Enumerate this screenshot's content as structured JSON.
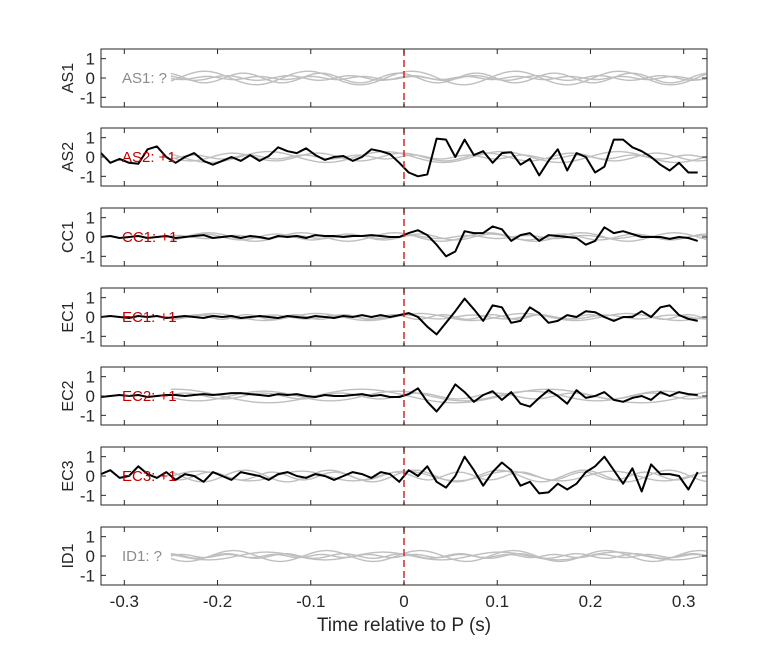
{
  "chart_data": {
    "type": "line",
    "xlabel": "Time relative to P (s)",
    "xlim": [
      -0.325,
      0.325
    ],
    "xticks": [
      -0.3,
      -0.2,
      -0.1,
      0,
      0.1,
      0.2,
      0.3
    ],
    "xtick_labels": [
      "-0.3",
      "-0.2",
      "-0.1",
      "0",
      "0.1",
      "0.2",
      "0.3"
    ],
    "ylim": [
      -1.5,
      1.5
    ],
    "yticks": [
      1,
      0,
      -1
    ],
    "ytick_labels": [
      "1",
      "0",
      "-1"
    ],
    "marker_line": {
      "x": 0,
      "color": "#d62728",
      "style": "dashed"
    },
    "colors": {
      "highlight_trace": "#000000",
      "background_traces": "#bfbfbf",
      "polarity_label": "#c00000",
      "unknown_label": "#8c8c8c",
      "axis": "#262626"
    },
    "panels": [
      {
        "station": "AS1",
        "annotation": "AS1: ?",
        "annotation_color": "#8c8c8c",
        "highlight": null,
        "background": [
          {
            "x0": -0.25,
            "x1": 0.325,
            "amp": 0.08,
            "freq": 18,
            "phase": 0.3
          },
          {
            "x0": -0.25,
            "x1": 0.325,
            "amp": 0.35,
            "freq": 9,
            "phase": 1.1
          },
          {
            "x0": -0.25,
            "x1": 0.325,
            "amp": 0.25,
            "freq": 12,
            "phase": 2.0
          },
          {
            "x0": -0.25,
            "x1": 0.325,
            "amp": 0.12,
            "freq": 15,
            "phase": 0.7
          }
        ]
      },
      {
        "station": "AS2",
        "annotation": "AS2: +1",
        "annotation_color": "#c00000",
        "highlight": {
          "x": [
            -0.325,
            -0.315,
            -0.305,
            -0.295,
            -0.285,
            -0.275,
            -0.265,
            -0.255,
            -0.245,
            -0.235,
            -0.225,
            -0.215,
            -0.205,
            -0.195,
            -0.185,
            -0.175,
            -0.165,
            -0.155,
            -0.145,
            -0.135,
            -0.125,
            -0.115,
            -0.105,
            -0.095,
            -0.085,
            -0.075,
            -0.065,
            -0.055,
            -0.045,
            -0.035,
            -0.025,
            -0.015,
            -0.005,
            0.005,
            0.015,
            0.025,
            0.035,
            0.045,
            0.055,
            0.065,
            0.075,
            0.085,
            0.095,
            0.105,
            0.115,
            0.125,
            0.135,
            0.145,
            0.155,
            0.165,
            0.175,
            0.185,
            0.195,
            0.205,
            0.215,
            0.225,
            0.235,
            0.245,
            0.255,
            0.265,
            0.275,
            0.285,
            0.295,
            0.305,
            0.315
          ],
          "y": [
            0.2,
            -0.3,
            -0.1,
            -0.3,
            -0.35,
            0.4,
            0.55,
            0.0,
            -0.3,
            0.0,
            0.2,
            -0.2,
            -0.4,
            -0.2,
            0.0,
            -0.2,
            0.1,
            -0.2,
            0.05,
            0.5,
            0.3,
            0.2,
            0.45,
            0.1,
            -0.15,
            0.0,
            0.05,
            -0.2,
            0.0,
            0.4,
            0.3,
            0.15,
            -0.3,
            -0.8,
            -1.0,
            -0.9,
            0.95,
            0.9,
            0.0,
            0.9,
            0.1,
            0.3,
            -0.3,
            0.2,
            0.25,
            -0.4,
            -0.1,
            -0.95,
            -0.2,
            0.4,
            -0.7,
            0.2,
            0.0,
            -0.8,
            -0.5,
            0.9,
            0.9,
            0.5,
            0.3,
            0.0,
            -0.4,
            -0.7,
            -0.3,
            -0.8,
            -0.8
          ]
        },
        "background": [
          {
            "x0": -0.25,
            "x1": 0.325,
            "amp": 0.1,
            "freq": 17,
            "phase": 0.5
          },
          {
            "x0": -0.25,
            "x1": 0.325,
            "amp": 0.2,
            "freq": 11,
            "phase": 1.7
          },
          {
            "x0": -0.25,
            "x1": 0.325,
            "amp": 0.28,
            "freq": 8,
            "phase": 2.6
          }
        ]
      },
      {
        "station": "CC1",
        "annotation": "CC1: +1",
        "annotation_color": "#c00000",
        "highlight": {
          "x": [
            -0.325,
            -0.315,
            -0.305,
            -0.295,
            -0.285,
            -0.275,
            -0.265,
            -0.255,
            -0.245,
            -0.235,
            -0.225,
            -0.215,
            -0.205,
            -0.195,
            -0.185,
            -0.175,
            -0.165,
            -0.155,
            -0.145,
            -0.135,
            -0.125,
            -0.115,
            -0.105,
            -0.095,
            -0.085,
            -0.075,
            -0.065,
            -0.055,
            -0.045,
            -0.035,
            -0.025,
            -0.015,
            -0.005,
            0.005,
            0.015,
            0.025,
            0.035,
            0.045,
            0.055,
            0.065,
            0.075,
            0.085,
            0.095,
            0.105,
            0.115,
            0.125,
            0.135,
            0.145,
            0.155,
            0.165,
            0.175,
            0.185,
            0.195,
            0.205,
            0.215,
            0.225,
            0.235,
            0.245,
            0.255,
            0.265,
            0.275,
            0.285,
            0.295,
            0.305,
            0.315
          ],
          "y": [
            0.0,
            0.05,
            -0.05,
            0.0,
            0.05,
            -0.05,
            0.0,
            0.05,
            -0.05,
            0.0,
            0.05,
            0.1,
            -0.05,
            0.0,
            0.05,
            -0.05,
            0.05,
            0.0,
            -0.1,
            0.05,
            0.0,
            0.05,
            -0.05,
            0.1,
            0.05,
            0.05,
            0.0,
            0.05,
            0.05,
            0.1,
            0.05,
            0.0,
            0.0,
            0.2,
            0.35,
            0.1,
            -0.4,
            -1.0,
            -0.75,
            0.3,
            0.2,
            0.2,
            0.55,
            0.4,
            -0.2,
            0.1,
            0.2,
            -0.2,
            0.1,
            0.05,
            0.0,
            -0.05,
            -0.4,
            -0.2,
            0.5,
            0.2,
            0.3,
            0.15,
            0.0,
            0.0,
            0.0,
            -0.1,
            0.0,
            -0.05,
            -0.2
          ]
        },
        "background": [
          {
            "x0": -0.25,
            "x1": 0.325,
            "amp": 0.08,
            "freq": 16,
            "phase": 0.9
          },
          {
            "x0": -0.25,
            "x1": 0.325,
            "amp": 0.22,
            "freq": 10,
            "phase": 2.2
          },
          {
            "x0": -0.25,
            "x1": 0.325,
            "amp": 0.15,
            "freq": 13,
            "phase": 0.2
          }
        ]
      },
      {
        "station": "EC1",
        "annotation": "EC1: +1",
        "annotation_color": "#c00000",
        "highlight": {
          "x": [
            -0.325,
            -0.315,
            -0.305,
            -0.295,
            -0.285,
            -0.275,
            -0.265,
            -0.255,
            -0.245,
            -0.235,
            -0.225,
            -0.215,
            -0.205,
            -0.195,
            -0.185,
            -0.175,
            -0.165,
            -0.155,
            -0.145,
            -0.135,
            -0.125,
            -0.115,
            -0.105,
            -0.095,
            -0.085,
            -0.075,
            -0.065,
            -0.055,
            -0.045,
            -0.035,
            -0.025,
            -0.015,
            -0.005,
            0.005,
            0.015,
            0.025,
            0.035,
            0.045,
            0.055,
            0.065,
            0.075,
            0.085,
            0.095,
            0.105,
            0.115,
            0.125,
            0.135,
            0.145,
            0.155,
            0.165,
            0.175,
            0.185,
            0.195,
            0.205,
            0.215,
            0.225,
            0.235,
            0.245,
            0.255,
            0.265,
            0.275,
            0.285,
            0.295,
            0.305,
            0.315
          ],
          "y": [
            0.0,
            0.05,
            0.0,
            -0.05,
            0.05,
            0.0,
            0.05,
            -0.05,
            0.0,
            0.05,
            0.0,
            -0.05,
            0.05,
            0.0,
            0.05,
            -0.05,
            0.0,
            0.05,
            0.0,
            -0.05,
            0.05,
            0.0,
            -0.05,
            0.05,
            0.0,
            -0.05,
            0.05,
            0.0,
            0.1,
            0.0,
            0.1,
            0.0,
            0.1,
            0.2,
            0.0,
            -0.5,
            -0.9,
            -0.3,
            0.3,
            0.95,
            0.4,
            -0.2,
            0.6,
            0.5,
            -0.3,
            -0.2,
            0.5,
            0.2,
            -0.3,
            -0.2,
            0.1,
            0.0,
            0.3,
            0.25,
            0.0,
            -0.2,
            0.0,
            0.0,
            0.3,
            0.0,
            0.5,
            0.6,
            0.1,
            -0.1,
            -0.2
          ]
        },
        "background": [
          {
            "x0": -0.25,
            "x1": 0.325,
            "amp": 0.1,
            "freq": 14,
            "phase": 1.4
          },
          {
            "x0": -0.25,
            "x1": 0.325,
            "amp": 0.18,
            "freq": 9,
            "phase": 0.6
          },
          {
            "x0": -0.25,
            "x1": 0.325,
            "amp": 0.12,
            "freq": 19,
            "phase": 2.9
          }
        ]
      },
      {
        "station": "EC2",
        "annotation": "EC2: +1",
        "annotation_color": "#c00000",
        "highlight": {
          "x": [
            -0.325,
            -0.315,
            -0.305,
            -0.295,
            -0.285,
            -0.275,
            -0.265,
            -0.255,
            -0.245,
            -0.235,
            -0.225,
            -0.215,
            -0.205,
            -0.195,
            -0.185,
            -0.175,
            -0.165,
            -0.155,
            -0.145,
            -0.135,
            -0.125,
            -0.115,
            -0.105,
            -0.095,
            -0.085,
            -0.075,
            -0.065,
            -0.055,
            -0.045,
            -0.035,
            -0.025,
            -0.015,
            -0.005,
            0.005,
            0.015,
            0.025,
            0.035,
            0.045,
            0.055,
            0.065,
            0.075,
            0.085,
            0.095,
            0.105,
            0.115,
            0.125,
            0.135,
            0.145,
            0.155,
            0.165,
            0.175,
            0.185,
            0.195,
            0.205,
            0.215,
            0.225,
            0.235,
            0.245,
            0.255,
            0.265,
            0.275,
            0.285,
            0.295,
            0.305,
            0.315
          ],
          "y": [
            -0.05,
            0.0,
            0.05,
            0.0,
            0.05,
            -0.05,
            0.0,
            0.05,
            0.05,
            0.0,
            0.05,
            0.1,
            0.05,
            0.1,
            0.15,
            0.15,
            0.1,
            0.05,
            0.0,
            0.1,
            0.05,
            0.1,
            0.0,
            -0.05,
            0.05,
            0.0,
            0.0,
            0.05,
            0.1,
            0.0,
            0.05,
            -0.05,
            -0.05,
            0.1,
            0.4,
            -0.3,
            -0.8,
            -0.2,
            0.6,
            0.2,
            -0.3,
            0.05,
            0.25,
            -0.2,
            0.2,
            -0.4,
            -0.55,
            -0.1,
            0.3,
            0.0,
            -0.4,
            0.3,
            -0.1,
            0.0,
            0.2,
            -0.2,
            -0.3,
            -0.1,
            0.0,
            -0.2,
            0.2,
            0.0,
            0.2,
            0.1,
            0.05
          ]
        },
        "background": [
          {
            "x0": -0.25,
            "x1": 0.325,
            "amp": 0.25,
            "freq": 7,
            "phase": 1.9
          },
          {
            "x0": -0.25,
            "x1": 0.325,
            "amp": 0.15,
            "freq": 12,
            "phase": 0.4
          },
          {
            "x0": -0.25,
            "x1": 0.325,
            "amp": 0.35,
            "freq": 5,
            "phase": 3.0
          }
        ]
      },
      {
        "station": "EC3",
        "annotation": "EC3: +1",
        "annotation_color": "#c00000",
        "highlight": {
          "x": [
            -0.325,
            -0.315,
            -0.305,
            -0.295,
            -0.285,
            -0.275,
            -0.265,
            -0.255,
            -0.245,
            -0.235,
            -0.225,
            -0.215,
            -0.205,
            -0.195,
            -0.185,
            -0.175,
            -0.165,
            -0.155,
            -0.145,
            -0.135,
            -0.125,
            -0.115,
            -0.105,
            -0.095,
            -0.085,
            -0.075,
            -0.065,
            -0.055,
            -0.045,
            -0.035,
            -0.025,
            -0.015,
            -0.005,
            0.005,
            0.015,
            0.025,
            0.035,
            0.045,
            0.055,
            0.065,
            0.075,
            0.085,
            0.095,
            0.105,
            0.115,
            0.125,
            0.135,
            0.145,
            0.155,
            0.165,
            0.175,
            0.185,
            0.195,
            0.205,
            0.215,
            0.225,
            0.235,
            0.245,
            0.255,
            0.265,
            0.275,
            0.285,
            0.295,
            0.305,
            0.315
          ],
          "y": [
            0.1,
            0.3,
            -0.1,
            0.0,
            0.5,
            0.1,
            -0.1,
            0.2,
            -0.2,
            0.1,
            0.0,
            -0.3,
            0.2,
            0.0,
            -0.2,
            0.2,
            0.1,
            0.0,
            -0.2,
            0.1,
            0.2,
            0.0,
            -0.1,
            0.1,
            0.0,
            -0.2,
            0.0,
            0.2,
            0.1,
            -0.1,
            0.2,
            0.1,
            -0.3,
            0.3,
            0.0,
            0.5,
            -0.3,
            -0.6,
            0.0,
            1.0,
            0.3,
            -0.5,
            0.2,
            0.7,
            0.3,
            -0.5,
            -0.3,
            -0.9,
            -0.85,
            -0.4,
            -0.7,
            -0.4,
            0.2,
            0.5,
            1.0,
            0.3,
            -0.4,
            0.4,
            -0.8,
            0.6,
            0.1,
            0.1,
            0.0,
            -0.7,
            0.2
          ]
        },
        "background": [
          {
            "x0": -0.25,
            "x1": 0.325,
            "amp": 0.3,
            "freq": 11,
            "phase": 0.8
          },
          {
            "x0": -0.25,
            "x1": 0.325,
            "amp": 0.2,
            "freq": 15,
            "phase": 2.3
          },
          {
            "x0": -0.25,
            "x1": 0.325,
            "amp": 0.25,
            "freq": 9,
            "phase": 1.5
          }
        ]
      },
      {
        "station": "ID1",
        "annotation": "ID1: ?",
        "annotation_color": "#8c8c8c",
        "highlight": null,
        "background": [
          {
            "x0": -0.25,
            "x1": 0.325,
            "amp": 0.28,
            "freq": 10,
            "phase": 0.5
          },
          {
            "x0": -0.25,
            "x1": 0.325,
            "amp": 0.12,
            "freq": 16,
            "phase": 1.8
          },
          {
            "x0": -0.25,
            "x1": 0.325,
            "amp": 0.2,
            "freq": 8,
            "phase": 2.7
          },
          {
            "x0": -0.25,
            "x1": 0.325,
            "amp": 0.08,
            "freq": 20,
            "phase": 0.1
          }
        ]
      }
    ]
  }
}
